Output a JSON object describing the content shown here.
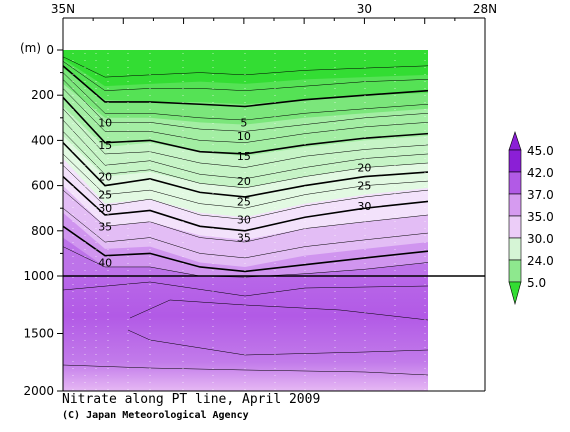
{
  "chart_data": {
    "type": "contour",
    "title": "Nitrate along PT line, April 2009",
    "credit": "(C) Japan Meteorological Agency",
    "x_axis": {
      "ticks": [
        {
          "label": "35N",
          "lat": 35
        },
        {
          "label": "30",
          "lat": 30
        },
        {
          "label": "28N",
          "lat": 28
        }
      ],
      "lim": [
        35,
        28
      ]
    },
    "y_axis": {
      "unit_label": "(m)",
      "ticks_upper": [
        0,
        200,
        400,
        600,
        800,
        1000
      ],
      "ticks_lower": [
        1500,
        2000
      ],
      "break_depth": 1000,
      "lim": [
        0,
        2000
      ]
    },
    "legend": {
      "values": [
        "45.0",
        "42.0",
        "37.0",
        "35.0",
        "30.0",
        "24.0",
        "5.0"
      ],
      "colors": [
        "#8b1fd6",
        "#b25ae6",
        "#d69bf0",
        "#eccdf8",
        "#d6f5d6",
        "#8ee88e",
        "#33dd33"
      ],
      "placement": "right"
    },
    "contour_labels": [
      {
        "text": "5",
        "lat": 32.0,
        "depth": 320
      },
      {
        "text": "10",
        "lat": 34.3,
        "depth": 320
      },
      {
        "text": "10",
        "lat": 32.0,
        "depth": 380
      },
      {
        "text": "15",
        "lat": 34.3,
        "depth": 420
      },
      {
        "text": "15",
        "lat": 32.0,
        "depth": 470
      },
      {
        "text": "20",
        "lat": 34.3,
        "depth": 560
      },
      {
        "text": "20",
        "lat": 32.0,
        "depth": 580
      },
      {
        "text": "20",
        "lat": 30.0,
        "depth": 520
      },
      {
        "text": "25",
        "lat": 34.3,
        "depth": 640
      },
      {
        "text": "25",
        "lat": 32.0,
        "depth": 670
      },
      {
        "text": "25",
        "lat": 30.0,
        "depth": 600
      },
      {
        "text": "30",
        "lat": 34.3,
        "depth": 700
      },
      {
        "text": "30",
        "lat": 32.0,
        "depth": 750
      },
      {
        "text": "30",
        "lat": 30.0,
        "depth": 690
      },
      {
        "text": "35",
        "lat": 34.3,
        "depth": 780
      },
      {
        "text": "35",
        "lat": 32.0,
        "depth": 830
      },
      {
        "text": "40",
        "lat": 34.3,
        "depth": 940
      }
    ]
  }
}
